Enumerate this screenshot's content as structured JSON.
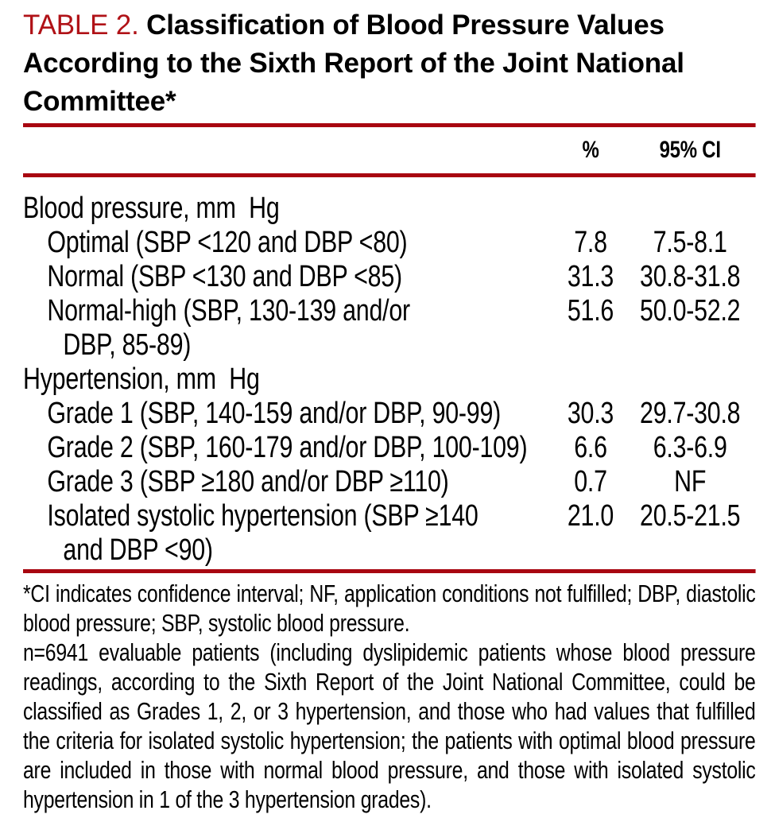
{
  "title": {
    "table_label": "TABLE 2.",
    "text": "Classification of Blood Pressure Values According to the Sixth Report of the Joint National Committee*"
  },
  "table": {
    "columns": {
      "pct": "%",
      "ci": "95% CI"
    },
    "rows": [
      {
        "label": "Blood pressure, mm  Hg",
        "indent": 0,
        "pct": "",
        "ci": ""
      },
      {
        "label": "Optimal (SBP <120 and DBP <80)",
        "indent": 1,
        "pct": "7.8",
        "ci": "7.5-8.1"
      },
      {
        "label": "Normal (SBP <130 and DBP <85)",
        "indent": 1,
        "pct": "31.3",
        "ci": "30.8-31.8"
      },
      {
        "label": "Normal-high (SBP, 130-139 and/or\nDBP, 85-89)",
        "indent": 1,
        "pct": "51.6",
        "ci": "50.0-52.2"
      },
      {
        "label": "Hypertension, mm  Hg",
        "indent": 0,
        "pct": "",
        "ci": ""
      },
      {
        "label": "Grade 1 (SBP, 140-159 and/or DBP, 90-99)",
        "indent": 1,
        "pct": "30.3",
        "ci": "29.7-30.8"
      },
      {
        "label": "Grade 2 (SBP, 160-179 and/or DBP, 100-109)",
        "indent": 1,
        "pct": "6.6",
        "ci": "6.3-6.9"
      },
      {
        "label": "Grade 3 (SBP ≥180 and/or DBP ≥110)",
        "indent": 1,
        "pct": "0.7",
        "ci": "NF"
      },
      {
        "label": "Isolated systolic hypertension (SBP ≥140\nand DBP <90)",
        "indent": 1,
        "pct": "21.0",
        "ci": "20.5-21.5"
      }
    ]
  },
  "footnotes": [
    "*CI indicates confidence interval; NF, application conditions not fulfilled; DBP, diastolic blood pressure; SBP, systolic blood pressure.",
    "n=6941 evaluable patients (including dyslipidemic patients whose blood pressure readings, according to the Sixth Report of the Joint National Committee, could be classified as Grades 1, 2, or 3 hypertension, and those who had values that fulfilled the criteria for isolated systolic hypertension; the patients with optimal blood pressure are included in those with normal blood pressure, and those with isolated systolic hypertension in 1 of the 3 hypertension grades)."
  ],
  "colors": {
    "rule_red": "#a80610",
    "title_red": "#b01217",
    "text": "#000000"
  }
}
